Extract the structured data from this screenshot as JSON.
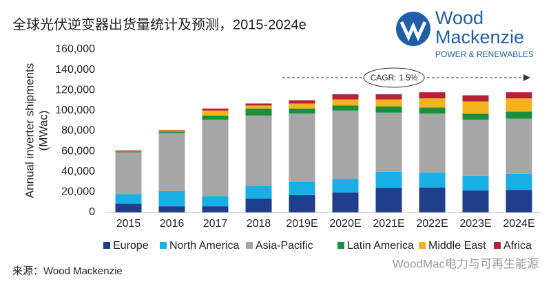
{
  "chart_data": {
    "type": "stacked-bar",
    "title": "全球光伏逆变器出货量统计及预测，2015-2024e",
    "y_label": [
      "Annual inverter shipments",
      "(MWac)"
    ],
    "annotation": "CAGR: 1.5%",
    "logo": {
      "name": [
        "Wood",
        "Mackenzie"
      ],
      "tagline": "POWER & RENEWABLES"
    },
    "source": "来源：Wood Mackenzie",
    "watermark": "WoodMac电力与可再生能源",
    "categories": [
      "2015",
      "2016",
      "2017",
      "2018",
      "2019E",
      "2020E",
      "2021E",
      "2022E",
      "2023E",
      "2024E"
    ],
    "series": [
      {
        "name": "Europe",
        "color": "#1f3e8c",
        "values": [
          8500,
          6000,
          6000,
          13500,
          17000,
          19500,
          24000,
          24500,
          21500,
          22000
        ]
      },
      {
        "name": "North America",
        "color": "#1aaee6",
        "values": [
          9500,
          15000,
          10000,
          12500,
          13000,
          13500,
          16000,
          14500,
          14500,
          16000
        ]
      },
      {
        "name": "Asia-Pacific",
        "color": "#a6a6a6",
        "values": [
          41000,
          57000,
          75000,
          69000,
          67000,
          67000,
          58000,
          58000,
          55000,
          54000
        ]
      },
      {
        "name": "Latin America",
        "color": "#1a8f3c",
        "values": [
          1000,
          1500,
          4000,
          7000,
          5000,
          5000,
          6000,
          6000,
          6000,
          7000
        ]
      },
      {
        "name": "Middle East",
        "color": "#f2b31c",
        "values": [
          500,
          1000,
          5000,
          3000,
          5000,
          6000,
          7000,
          9000,
          12000,
          13000
        ]
      },
      {
        "name": "Africa",
        "color": "#b5213a",
        "values": [
          500,
          500,
          2000,
          2000,
          3000,
          5000,
          5000,
          6000,
          6000,
          6000
        ]
      }
    ],
    "ylim": [
      0,
      160000
    ],
    "yticks": [
      0,
      {
        "value": 20000,
        "label": "20,000"
      },
      {
        "value": 40000,
        "label": "40,000"
      },
      {
        "value": 60000,
        "label": "60,000"
      },
      {
        "value": 80000,
        "label": "80,000"
      },
      {
        "value": 100000,
        "label": "100,000"
      },
      {
        "value": 120000,
        "label": "120,000"
      },
      {
        "value": 140000,
        "label": "140,000"
      },
      {
        "value": 160000,
        "label": "160,000"
      }
    ],
    "grid": false
  }
}
